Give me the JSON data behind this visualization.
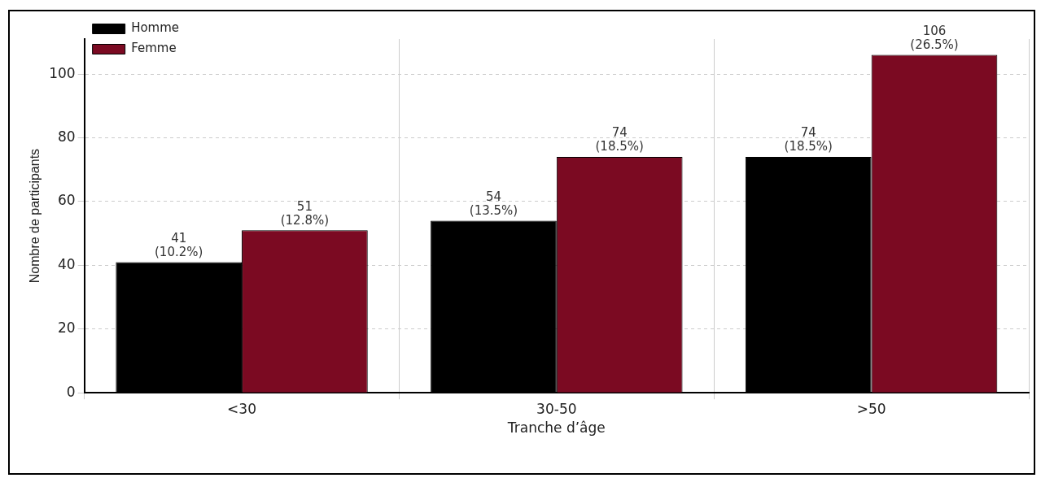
{
  "chart_data": {
    "type": "bar",
    "xlabel": "Tranche d’âge",
    "ylabel": "Nombre de participants",
    "categories": [
      "<30",
      "30-50",
      ">50"
    ],
    "series": [
      {
        "name": "Homme",
        "color": "#000000",
        "values": [
          41,
          54,
          74
        ],
        "value_labels": [
          "41\n(10.2%)",
          "54\n(13.5%)",
          "74\n(18.5%)"
        ]
      },
      {
        "name": "Femme",
        "color": "#7b0a22",
        "values": [
          51,
          74,
          106
        ],
        "value_labels": [
          "51\n(12.8%)",
          "74\n(18.5%)",
          "106\n(26.5%)"
        ]
      }
    ],
    "ylim": [
      0,
      111
    ],
    "yticks": [
      0,
      20,
      40,
      60,
      80,
      100
    ],
    "grid": true,
    "legend": "top left"
  }
}
